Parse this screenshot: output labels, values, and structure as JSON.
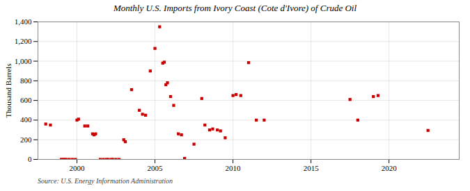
{
  "chart_data": {
    "type": "scatter",
    "title": "Monthly U.S. Imports from Ivory Coast (Cote d'Ivore) of Crude Oil",
    "ylabel": "Thousand Barrels",
    "annotations": [
      "Source: U.S. Energy Information Administration"
    ],
    "x": [
      1998.0,
      1998.3,
      1999.0,
      1999.1,
      1999.2,
      1999.3,
      1999.5,
      1999.7,
      1999.9,
      2000.0,
      2000.1,
      2000.5,
      2000.7,
      2001.0,
      2001.1,
      2001.2,
      2001.5,
      2001.7,
      2001.9,
      2002.0,
      2002.2,
      2002.3,
      2002.5,
      2002.7,
      2003.0,
      2003.1,
      2003.5,
      2004.0,
      2004.2,
      2004.4,
      2004.7,
      2005.0,
      2005.3,
      2005.5,
      2005.6,
      2005.7,
      2005.8,
      2006.0,
      2006.2,
      2006.5,
      2006.7,
      2006.9,
      2007.5,
      2008.0,
      2008.2,
      2008.5,
      2008.7,
      2009.0,
      2009.2,
      2009.5,
      2010.0,
      2010.2,
      2010.5,
      2011.0,
      2011.5,
      2012.0,
      2017.5,
      2018.0,
      2019.0,
      2019.3,
      2022.5
    ],
    "values": [
      360,
      350,
      0,
      0,
      0,
      0,
      0,
      0,
      0,
      400,
      410,
      340,
      340,
      260,
      250,
      260,
      0,
      0,
      0,
      0,
      0,
      0,
      0,
      0,
      200,
      180,
      710,
      500,
      460,
      450,
      900,
      1130,
      1350,
      980,
      990,
      760,
      780,
      640,
      550,
      260,
      250,
      10,
      155,
      620,
      350,
      300,
      310,
      300,
      290,
      220,
      650,
      660,
      650,
      985,
      400,
      400,
      610,
      400,
      640,
      650,
      295
    ],
    "color": "#cc0000",
    "marker": "square",
    "xlim": [
      1997.5,
      2024.5
    ],
    "xticks": [
      2000,
      2005,
      2010,
      2015,
      2020
    ],
    "ylim": [
      0,
      1400
    ],
    "yticks": [
      0,
      200,
      400,
      600,
      800,
      {
        "value": 1000,
        "label": "1,000"
      },
      {
        "value": 1200,
        "label": "1,200"
      },
      {
        "value": 1400,
        "label": "1,400"
      }
    ],
    "grid": true
  }
}
